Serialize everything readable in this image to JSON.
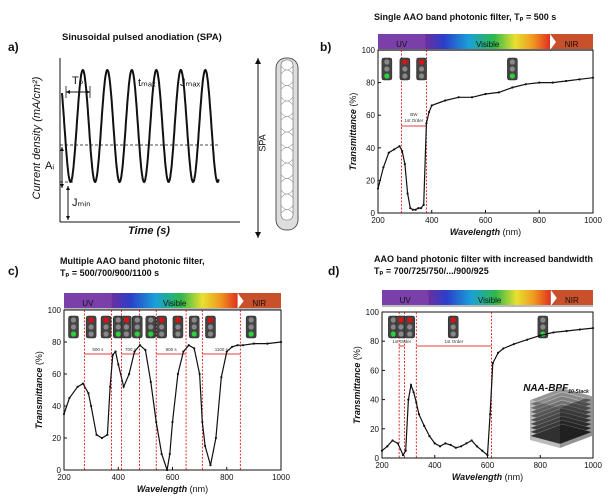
{
  "panel_a": {
    "label": "a)",
    "title": "Sinusoidal pulsed anodiation (SPA)",
    "ylabel": "Current density (mA/cm²)",
    "xlabel": "Time (s)",
    "tp": "Tₚ",
    "tmax": "tₘₐₓ",
    "jmax": "Jₘₐₓ",
    "ai": "Aᵢ",
    "jmin": "Jₘᵢₙ",
    "spa": "SPA"
  },
  "spectrum": {
    "uv": "UV",
    "visible": "Visible",
    "nir": "NIR",
    "colors": {
      "uv": "#7a3fa8",
      "nir": "#c8502a",
      "red": "#d40000"
    }
  },
  "axis_text": {
    "ylabel": "Transmittance",
    "yunit": "(%)",
    "xlabel": "Wavelength",
    "xunit": "(nm)"
  },
  "panel_b": {
    "label": "b)",
    "title": "Single AAO band photonic filter, Tₚ = 500 s",
    "bw": "BW",
    "order": "1st Order"
  },
  "panel_c": {
    "label": "c)",
    "title_line1": "Multiple AAO band photonic filter,",
    "title_line2": "Tₚ = 500/700/900/1100 s",
    "bw_labels": [
      "500 s",
      "700 s",
      "900 s",
      "1100 s"
    ]
  },
  "panel_d": {
    "label": "d)",
    "title_line1": "AAO band photonic filter with increased bandwidth",
    "title_line2": "Tₚ = 700/725/750/.../900/925",
    "bw": "BW",
    "order": "1st Order",
    "stack_label": "NAA-BPF",
    "stack_sub": "10-Stack"
  },
  "chart_data": [
    {
      "type": "line",
      "panel": "b",
      "xlim": [
        200,
        1000
      ],
      "ylim": [
        0,
        100
      ],
      "xticks": [
        200,
        400,
        600,
        800,
        1000
      ],
      "yticks": [
        0,
        20,
        40,
        60,
        80,
        100
      ],
      "x": [
        200,
        220,
        240,
        260,
        280,
        290,
        300,
        310,
        320,
        330,
        340,
        350,
        360,
        370,
        380,
        390,
        400,
        450,
        500,
        550,
        600,
        650,
        700,
        750,
        800,
        850,
        900,
        950,
        1000
      ],
      "y": [
        15,
        28,
        37,
        39,
        41,
        38,
        30,
        12,
        3,
        2,
        2,
        3,
        3,
        5,
        55,
        62,
        66,
        69,
        71,
        71,
        73,
        74,
        77,
        79,
        80,
        80,
        81,
        82,
        83
      ]
    },
    {
      "type": "line",
      "panel": "c",
      "xlim": [
        200,
        1000
      ],
      "ylim": [
        0,
        100
      ],
      "xticks": [
        200,
        400,
        600,
        800,
        1000
      ],
      "yticks": [
        0,
        20,
        40,
        60,
        80,
        100
      ],
      "x": [
        200,
        220,
        250,
        270,
        290,
        300,
        320,
        340,
        360,
        370,
        380,
        390,
        400,
        420,
        440,
        460,
        480,
        500,
        520,
        540,
        560,
        580,
        590,
        600,
        620,
        640,
        660,
        680,
        700,
        710,
        720,
        740,
        760,
        780,
        800,
        820,
        840,
        860,
        900,
        950,
        1000
      ],
      "y": [
        35,
        45,
        52,
        54,
        48,
        40,
        22,
        20,
        22,
        52,
        72,
        74,
        66,
        52,
        60,
        74,
        78,
        75,
        55,
        30,
        10,
        0,
        10,
        30,
        60,
        74,
        78,
        76,
        60,
        30,
        15,
        3,
        20,
        58,
        74,
        77,
        78,
        78,
        79,
        79,
        80
      ]
    },
    {
      "type": "line",
      "panel": "d",
      "xlim": [
        200,
        1000
      ],
      "ylim": [
        0,
        100
      ],
      "xticks": [
        200,
        400,
        600,
        800,
        1000
      ],
      "yticks": [
        0,
        20,
        40,
        60,
        80,
        100
      ],
      "x": [
        200,
        220,
        240,
        260,
        280,
        290,
        300,
        310,
        320,
        330,
        340,
        360,
        380,
        400,
        420,
        440,
        460,
        480,
        500,
        520,
        540,
        560,
        580,
        600,
        610,
        620,
        640,
        660,
        700,
        750,
        800,
        850,
        900,
        950,
        1000
      ],
      "y": [
        5,
        8,
        12,
        10,
        2,
        5,
        40,
        50,
        45,
        38,
        30,
        22,
        15,
        10,
        8,
        10,
        9,
        7,
        8,
        10,
        12,
        8,
        5,
        2,
        30,
        65,
        72,
        75,
        78,
        81,
        84,
        86,
        87,
        88,
        89
      ]
    }
  ]
}
